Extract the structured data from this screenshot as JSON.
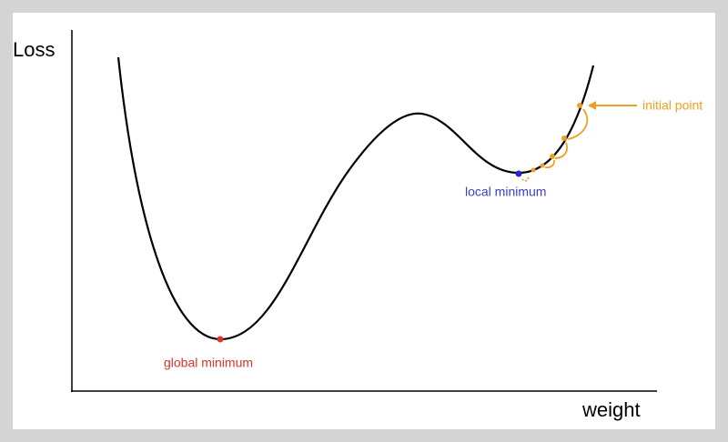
{
  "axes": {
    "y_label": "Loss",
    "x_label": "weight"
  },
  "annotations": {
    "global_minimum": "global minimum",
    "local_minimum": "local minimum",
    "initial_point": "initial point"
  }
}
